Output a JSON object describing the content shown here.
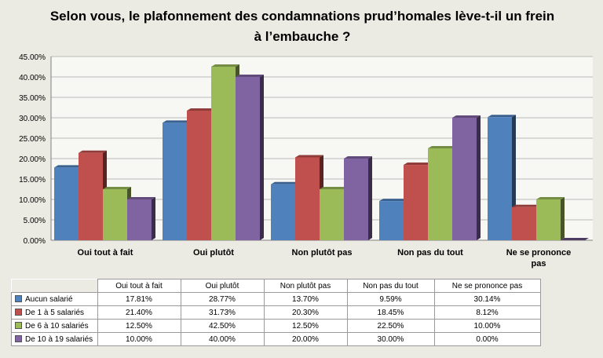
{
  "chart_data": {
    "type": "bar",
    "title": "Selon vous, le plafonnement des condamnations prud’homales lève-t-il un frein à l’embauche ?",
    "categories": [
      "Oui tout à fait",
      "Oui plutôt",
      "Non plutôt pas",
      "Non pas du tout",
      "Ne se prononce pas"
    ],
    "series": [
      {
        "name": "Aucun salarié",
        "color": "#4f81bd",
        "values": [
          17.81,
          28.77,
          13.7,
          9.59,
          30.14
        ],
        "labels": [
          "17.81%",
          "28.77%",
          "13.70%",
          "9.59%",
          "30.14%"
        ]
      },
      {
        "name": "De 1 à 5 salariés",
        "color": "#c0504d",
        "values": [
          21.4,
          31.73,
          20.3,
          18.45,
          8.12
        ],
        "labels": [
          "21.40%",
          "31.73%",
          "20.30%",
          "18.45%",
          "8.12%"
        ]
      },
      {
        "name": "De 6 à 10 salariés",
        "color": "#9bbb59",
        "values": [
          12.5,
          42.5,
          12.5,
          22.5,
          10.0
        ],
        "labels": [
          "12.50%",
          "42.50%",
          "12.50%",
          "22.50%",
          "10.00%"
        ]
      },
      {
        "name": "De 10 à 19 salariés",
        "color": "#8064a2",
        "values": [
          10.0,
          40.0,
          20.0,
          30.0,
          0.0
        ],
        "labels": [
          "10.00%",
          "40.00%",
          "20.00%",
          "30.00%",
          "0.00%"
        ]
      }
    ],
    "ylim": [
      0,
      45
    ],
    "yticks": [
      "0.00%",
      "5.00%",
      "10.00%",
      "15.00%",
      "20.00%",
      "25.00%",
      "30.00%",
      "35.00%",
      "40.00%",
      "45.00%"
    ],
    "grid": true,
    "legend": "data-table-below",
    "xlabel": "",
    "ylabel": ""
  }
}
